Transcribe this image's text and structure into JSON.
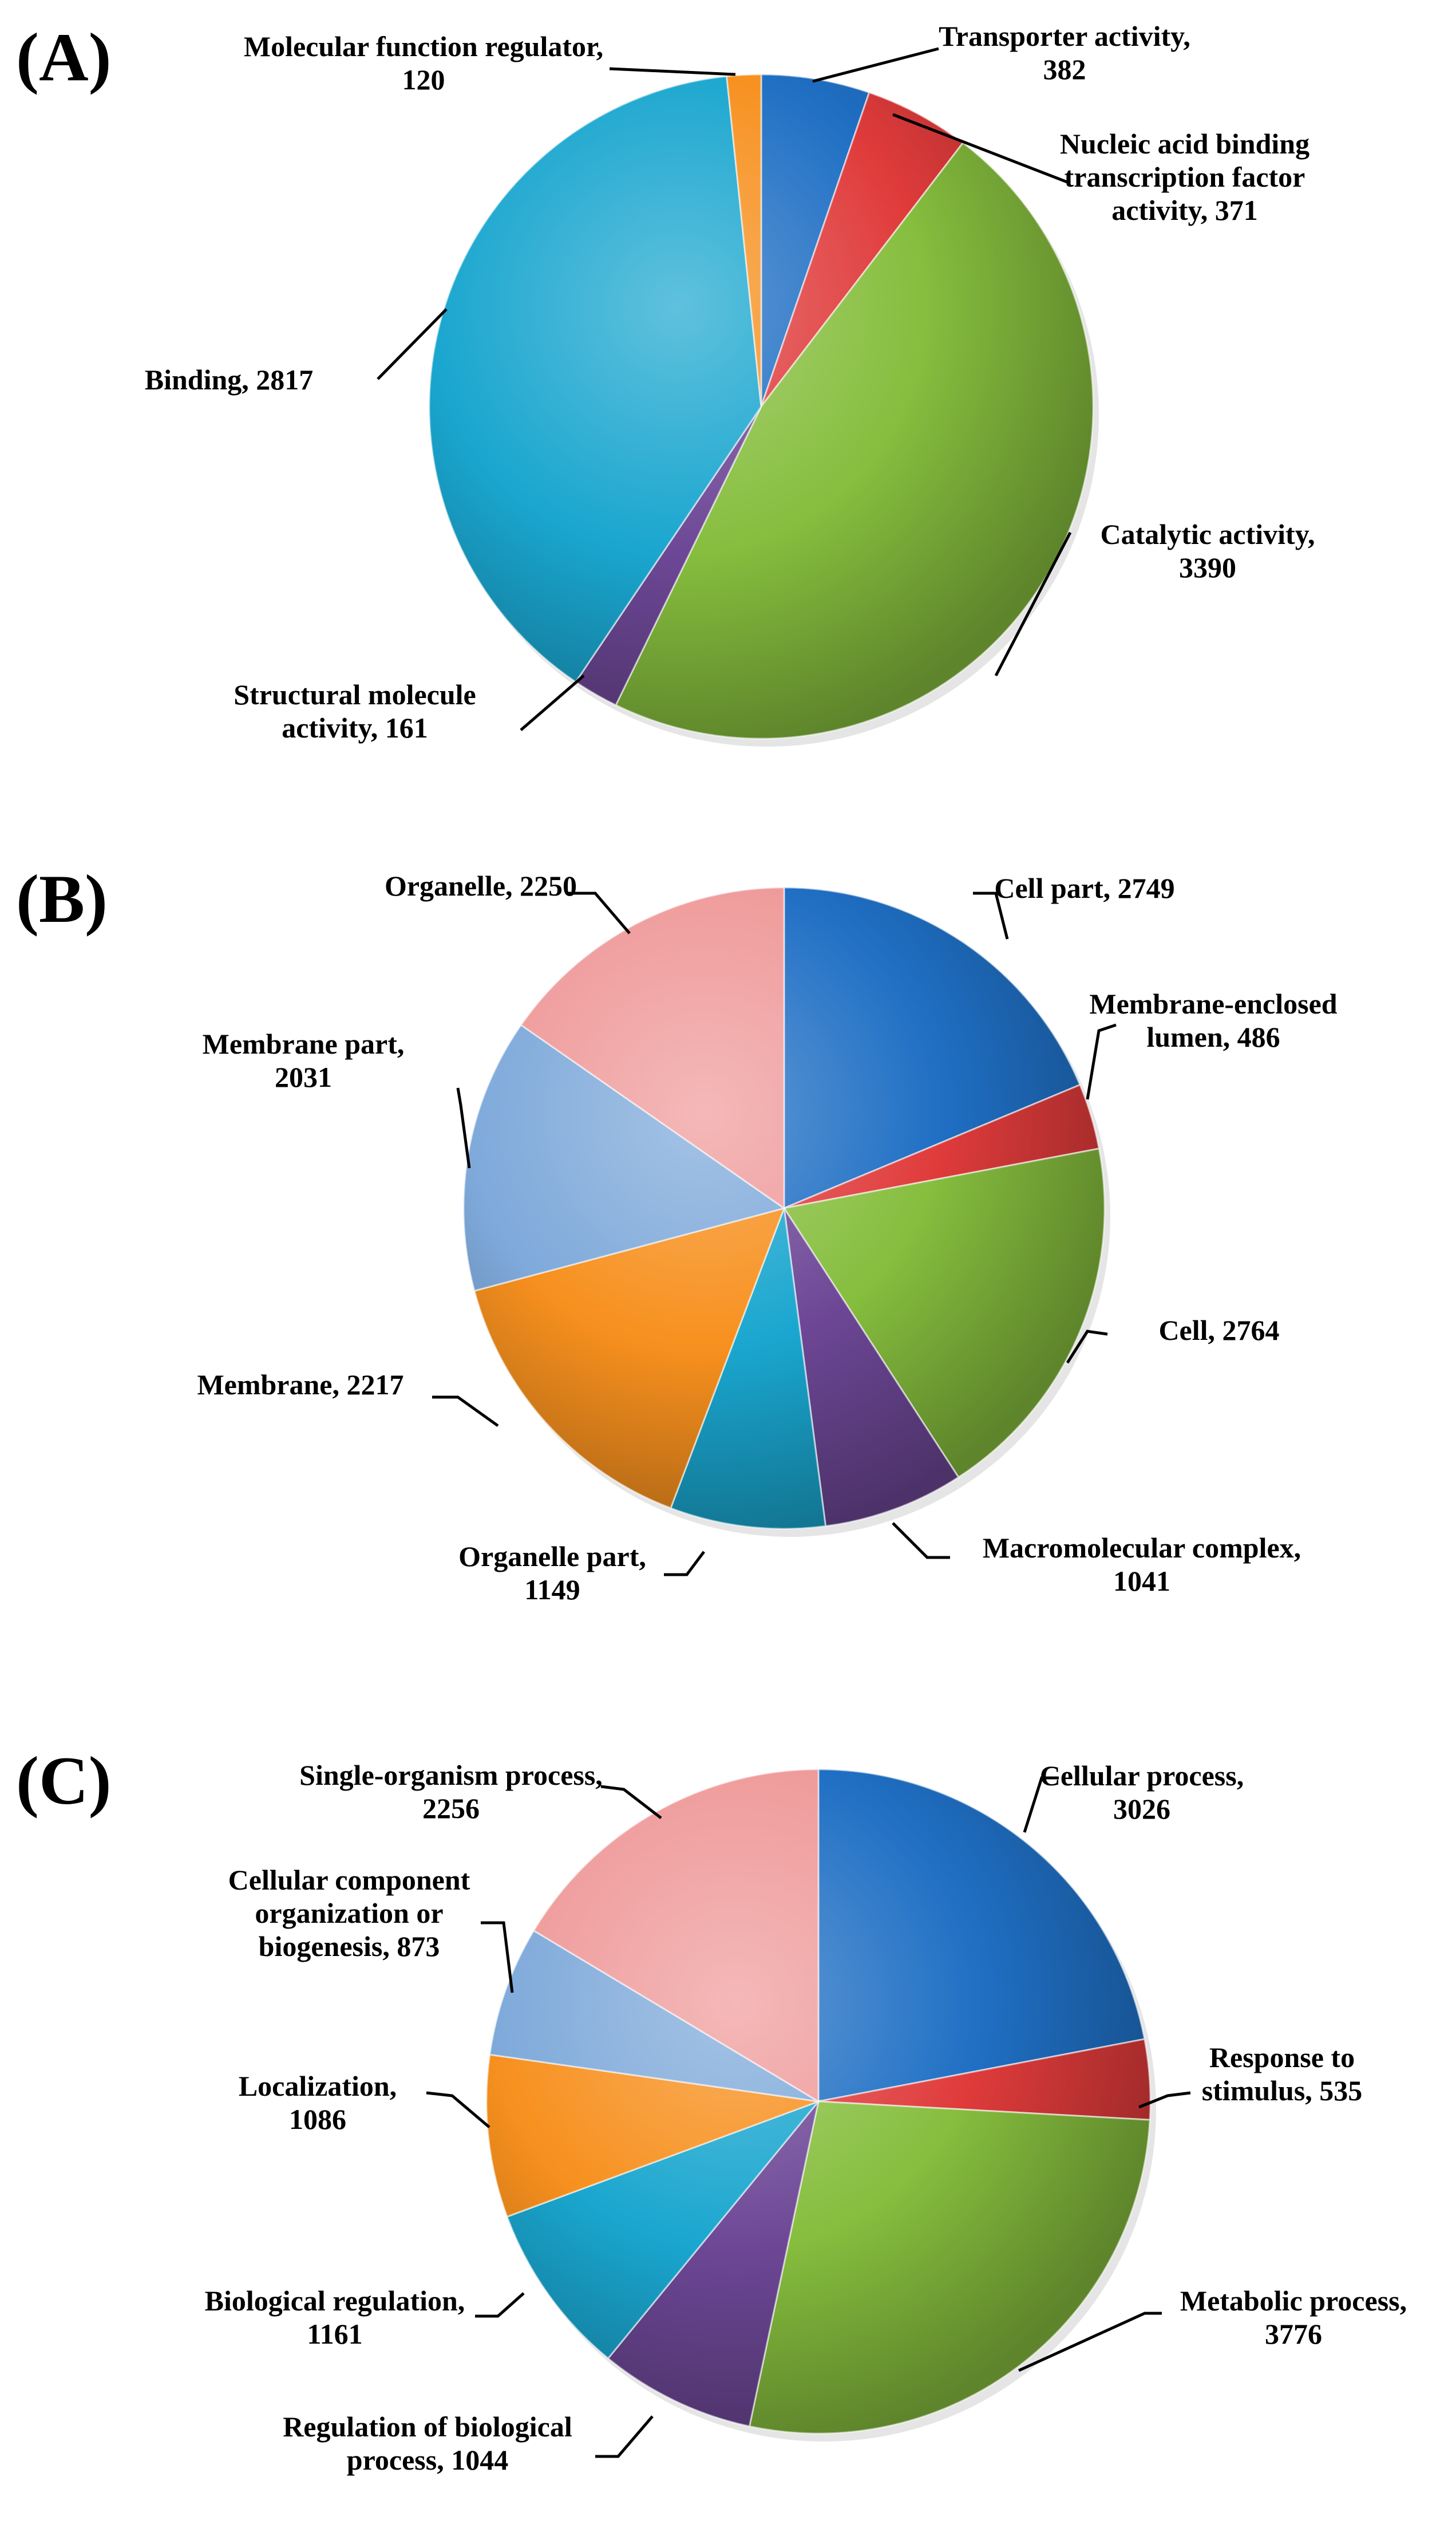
{
  "chart_data": [
    {
      "type": "pie",
      "panel": "(A)",
      "slices": [
        {
          "label": [
            "Transporter activity,",
            "382"
          ],
          "value": 382,
          "color": "#1f6fc4"
        },
        {
          "label": [
            "Nucleic acid binding",
            "transcription factor",
            "activity, 371"
          ],
          "value": 371,
          "color": "#e03b3b"
        },
        {
          "label": [
            "Catalytic activity,",
            "3390"
          ],
          "value": 3390,
          "color": "#86be3e"
        },
        {
          "label": [
            "Structural molecule",
            "activity, 161"
          ],
          "value": 161,
          "color": "#6d4796"
        },
        {
          "label": [
            "Binding, 2817"
          ],
          "value": 2817,
          "color": "#1aa6cf"
        },
        {
          "label": [
            "Molecular function regulator,",
            "120"
          ],
          "value": 120,
          "color": "#f7901e"
        }
      ]
    },
    {
      "type": "pie",
      "panel": "(B)",
      "slices": [
        {
          "label": [
            "Cell part, 2749"
          ],
          "value": 2749,
          "color": "#1f6fc4"
        },
        {
          "label": [
            "Membrane-enclosed",
            "lumen, 486"
          ],
          "value": 486,
          "color": "#e03b3b"
        },
        {
          "label": [
            "Cell, 2764"
          ],
          "value": 2764,
          "color": "#86be3e"
        },
        {
          "label": [
            "Macromolecular complex,",
            "1041"
          ],
          "value": 1041,
          "color": "#6d4796"
        },
        {
          "label": [
            "Organelle part,",
            "1149"
          ],
          "value": 1149,
          "color": "#1aa6cf"
        },
        {
          "label": [
            "Membrane, 2217"
          ],
          "value": 2217,
          "color": "#f7901e"
        },
        {
          "label": [
            "Membrane part,",
            "2031"
          ],
          "value": 2031,
          "color": "#7ea9da"
        },
        {
          "label": [
            "Organelle, 2250"
          ],
          "value": 2250,
          "color": "#ef9a9a"
        }
      ]
    },
    {
      "type": "pie",
      "panel": "(C)",
      "slices": [
        {
          "label": [
            "Cellular process,",
            "3026"
          ],
          "value": 3026,
          "color": "#1f6fc4"
        },
        {
          "label": [
            "Response to",
            "stimulus, 535"
          ],
          "value": 535,
          "color": "#e03b3b"
        },
        {
          "label": [
            "Metabolic process,",
            "3776"
          ],
          "value": 3776,
          "color": "#86be3e"
        },
        {
          "label": [
            "Regulation of biological",
            "process, 1044"
          ],
          "value": 1044,
          "color": "#6d4796"
        },
        {
          "label": [
            "Biological regulation,",
            "1161"
          ],
          "value": 1161,
          "color": "#1aa6cf"
        },
        {
          "label": [
            "Localization,",
            "1086"
          ],
          "value": 1086,
          "color": "#f7901e"
        },
        {
          "label": [
            "Cellular component",
            "organization or",
            "biogenesis, 873"
          ],
          "value": 873,
          "color": "#7ea9da"
        },
        {
          "label": [
            "Single-organism process,",
            "2256"
          ],
          "value": 2256,
          "color": "#ef9a9a"
        }
      ]
    }
  ]
}
